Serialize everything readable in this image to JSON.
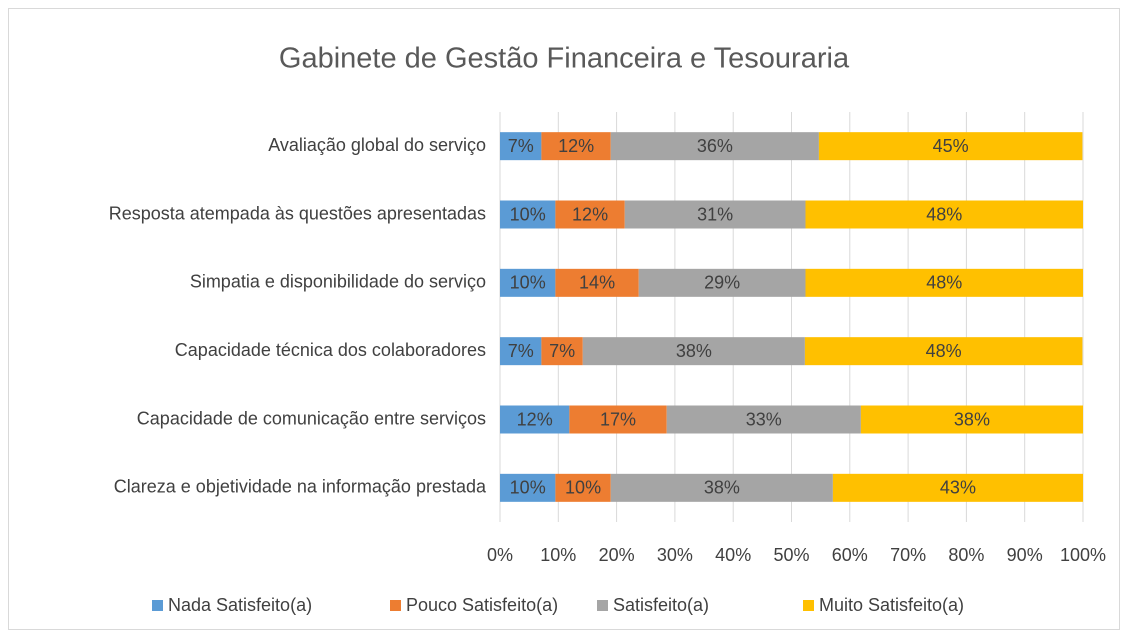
{
  "chart_data": {
    "type": "stacked-bar-horizontal",
    "title": "Gabinete de Gestão Financeira e Tesouraria",
    "categories": [
      "Avaliação global do serviço",
      "Resposta atempada às questões apresentadas",
      "Simpatia e disponibilidade do serviço",
      "Capacidade técnica dos colaboradores",
      "Capacidade de comunicação entre serviços",
      "Clareza e objetividade na informação prestada"
    ],
    "series": [
      {
        "name": "Nada Satisfeito(a)",
        "color": "#5b9bd5",
        "values": [
          7.1,
          9.5,
          9.5,
          7.1,
          11.9,
          9.5
        ],
        "value_labels": [
          "7%",
          "10%",
          "10%",
          "7%",
          "12%",
          "10%"
        ]
      },
      {
        "name": "Pouco Satisfeito(a)",
        "color": "#ed7d31",
        "values": [
          11.9,
          11.9,
          14.3,
          7.1,
          16.7,
          9.5
        ],
        "value_labels": [
          "12%",
          "12%",
          "14%",
          "7%",
          "17%",
          "10%"
        ]
      },
      {
        "name": "Satisfeito(a)",
        "color": "#a5a5a5",
        "values": [
          35.7,
          31.0,
          28.6,
          38.1,
          33.3,
          38.1
        ],
        "value_labels": [
          "36%",
          "31%",
          "29%",
          "38%",
          "33%",
          "38%"
        ]
      },
      {
        "name": "Muito Satisfeito(a)",
        "color": "#ffc000",
        "values": [
          45.2,
          47.6,
          47.6,
          47.6,
          38.1,
          42.9
        ],
        "value_labels": [
          "45%",
          "48%",
          "48%",
          "48%",
          "38%",
          "43%"
        ]
      }
    ],
    "xlim": [
      0,
      100
    ],
    "xticks": [
      {
        "value": 0,
        "label": "0%"
      },
      {
        "value": 10,
        "label": "10%"
      },
      {
        "value": 20,
        "label": "20%"
      },
      {
        "value": 30,
        "label": "30%"
      },
      {
        "value": 40,
        "label": "40%"
      },
      {
        "value": 50,
        "label": "50%"
      },
      {
        "value": 60,
        "label": "60%"
      },
      {
        "value": 70,
        "label": "70%"
      },
      {
        "value": 80,
        "label": "80%"
      },
      {
        "value": 90,
        "label": "90%"
      },
      {
        "value": 100,
        "label": "100%"
      }
    ],
    "grid": true,
    "legend": "bottom"
  }
}
